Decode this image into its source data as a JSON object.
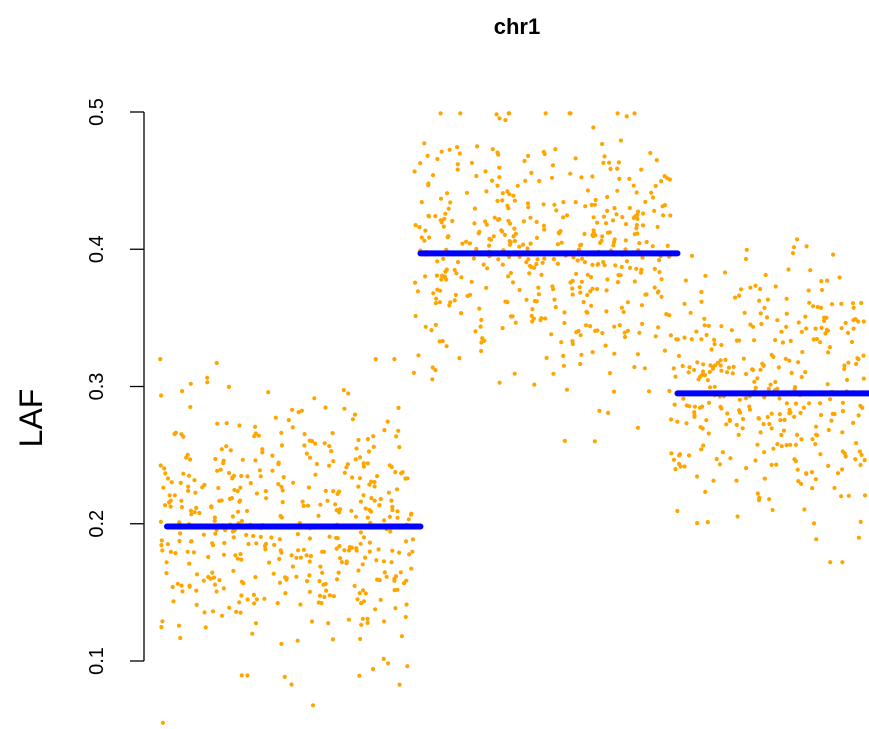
{
  "chart_data": {
    "type": "scatter",
    "title": "chr1",
    "xlabel": "",
    "ylabel": "LAF",
    "ylim": [
      0.045,
      0.51
    ],
    "yticks": [
      "0.1",
      "0.2",
      "0.3",
      "0.4",
      "0.5"
    ],
    "grid": false,
    "point_color": "#FFA500",
    "segment_color": "#0000FF",
    "segments": [
      {
        "x_start": 0,
        "x_end": 286,
        "y": 0.198,
        "y_min": 0.055,
        "y_max": 0.32,
        "spread": 0.045
      },
      {
        "x_start": 286,
        "x_end": 576,
        "y": 0.397,
        "y_min": 0.25,
        "y_max": 0.499,
        "spread": 0.048
      },
      {
        "x_start": 576,
        "x_end": 800,
        "y": 0.295,
        "y_min": 0.153,
        "y_max": 0.41,
        "spread": 0.047
      }
    ]
  }
}
